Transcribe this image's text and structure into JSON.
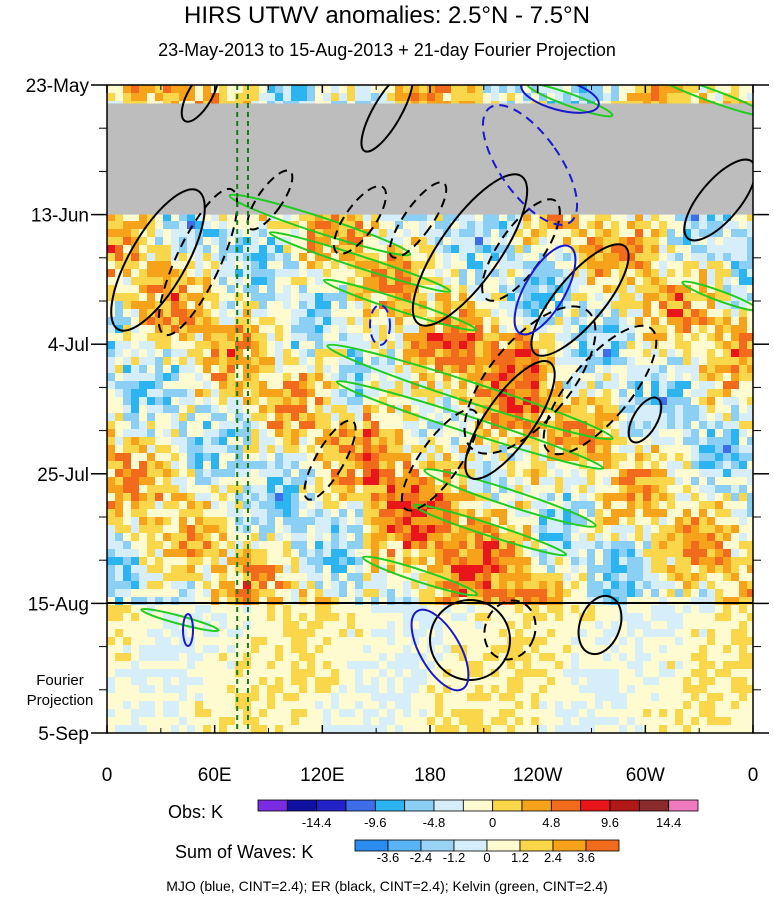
{
  "title": "HIRS UTWV anomalies: 2.5°N - 7.5°N",
  "subtitle": "23-May-2013 to 15-Aug-2013 + 21-day Fourier Projection",
  "footer": "MJO (blue, CINT=2.4); ER (black, CINT=2.4); Kelvin (green, CINT=2.4)",
  "colorbars": {
    "obs": {
      "label": "Obs: K",
      "colors": [
        "#7b2be2",
        "#1010a0",
        "#2222c8",
        "#3d6ee8",
        "#2bb4f0",
        "#8ccff5",
        "#d6eefa",
        "#fffbd0",
        "#f9d64a",
        "#f7a21b",
        "#f26a1b",
        "#e8161b",
        "#b01818",
        "#8a2a2a",
        "#f07ac0"
      ],
      "ticks": [
        "-14.4",
        "-9.6",
        "-4.8",
        "0",
        "4.8",
        "9.6",
        "14.4"
      ]
    },
    "waves": {
      "label": "Sum of Waves: K",
      "colors": [
        "#2b8cf0",
        "#58b4f5",
        "#9bd3f7",
        "#d6eefa",
        "#fffbd0",
        "#f9d64a",
        "#f7a21b",
        "#f26a1b"
      ],
      "ticks": [
        "-3.6",
        "-2.4",
        "-1.2",
        "0",
        "1.2",
        "2.4",
        "3.6"
      ]
    }
  },
  "chart_data": {
    "type": "heatmap",
    "title": "HIRS UTWV anomalies: 2.5°N - 7.5°N",
    "subtitle": "23-May-2013 to 15-Aug-2013 + 21-day Fourier Projection",
    "x_ticks": [
      "0",
      "60E",
      "120E",
      "180",
      "120W",
      "60W",
      "0"
    ],
    "x_tick_lon": [
      0,
      60,
      120,
      180,
      240,
      300,
      360
    ],
    "y_ticks": [
      "23-May",
      "13-Jun",
      "4-Jul",
      "25-Jul",
      "15-Aug",
      "5-Sep"
    ],
    "y_tick_day": [
      0,
      21,
      42,
      63,
      84,
      105
    ],
    "projection_label": [
      "Fourier",
      "Projection"
    ],
    "xlim": [
      0,
      360
    ],
    "ylim_days": [
      0,
      105
    ],
    "obs_end_day": 84,
    "missing_band_days": [
      3,
      21
    ],
    "reference_lon_lines": [
      72,
      78
    ],
    "contours": [
      {
        "wave": "MJO",
        "color": "#1a1acc",
        "cint": 2.4
      },
      {
        "wave": "ER",
        "color": "#000000",
        "cint": 2.4
      },
      {
        "wave": "Kelvin",
        "color": "#22cc22",
        "cint": 2.4
      }
    ]
  }
}
